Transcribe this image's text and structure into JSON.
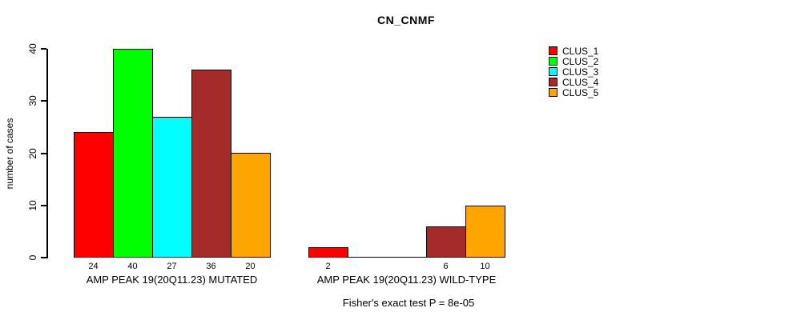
{
  "chart_data": {
    "type": "bar",
    "title": "CN_CNMF",
    "ylabel": "number of cases",
    "xlabel": "",
    "ylim": [
      0,
      40
    ],
    "yticks": [
      0,
      10,
      20,
      30,
      40
    ],
    "grid": false,
    "legend_position": "right",
    "series": [
      {
        "name": "CLUS_1",
        "color": "#FF0000"
      },
      {
        "name": "CLUS_2",
        "color": "#00FF00"
      },
      {
        "name": "CLUS_3",
        "color": "#00FFFF"
      },
      {
        "name": "CLUS_4",
        "color": "#A52A2A"
      },
      {
        "name": "CLUS_5",
        "color": "#FFA500"
      }
    ],
    "groups": [
      {
        "label": "AMP PEAK 19(20Q11.23) MUTATED",
        "values": [
          24,
          40,
          27,
          36,
          20
        ]
      },
      {
        "label": "AMP PEAK 19(20Q11.23) WILD-TYPE",
        "values": [
          2,
          0,
          0,
          6,
          10
        ]
      }
    ],
    "annotation": "Fisher's exact test P = 8e-05"
  }
}
